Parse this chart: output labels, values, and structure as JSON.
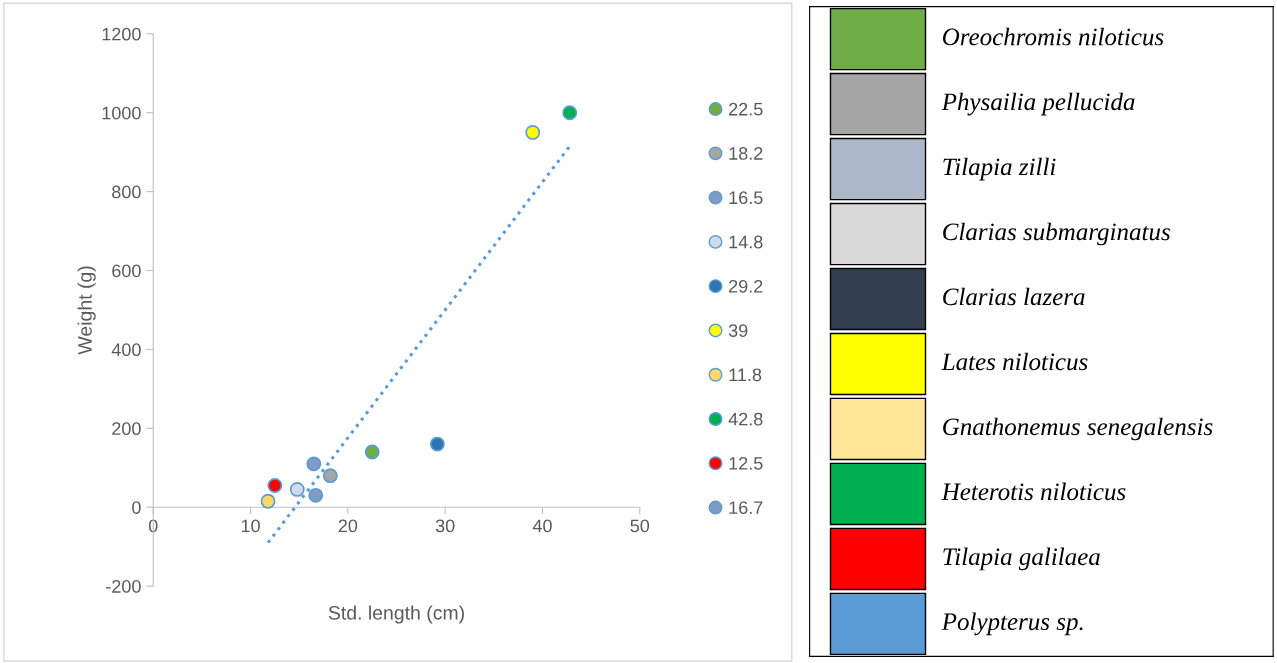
{
  "chart_data": [
    {
      "type": "scatter",
      "xlabel": "Std. length (cm)",
      "ylabel": "Weight (g)",
      "xlim": [
        0,
        50
      ],
      "xticks": [
        0,
        10,
        20,
        30,
        40,
        50
      ],
      "ylim": [
        -200,
        1200
      ],
      "yticks": [
        -200,
        0,
        200,
        400,
        600,
        800,
        1000,
        1200
      ],
      "grid": false,
      "legend": "right",
      "marker": "circle",
      "series": [
        {
          "name": "22.5",
          "color": "#70ad47",
          "x": [
            22.5
          ],
          "values": [
            140
          ]
        },
        {
          "name": "18.2",
          "color": "#a5a5a5",
          "x": [
            18.2
          ],
          "values": [
            80
          ]
        },
        {
          "name": "16.5",
          "color": "#7f9bc4",
          "x": [
            16.5
          ],
          "values": [
            110
          ]
        },
        {
          "name": "14.8",
          "color": "#d0dae8",
          "x": [
            14.8
          ],
          "values": [
            45
          ]
        },
        {
          "name": "29.2",
          "color": "#2e75b6",
          "x": [
            29.2
          ],
          "values": [
            160
          ]
        },
        {
          "name": "39",
          "color": "#ffff00",
          "x": [
            39
          ],
          "values": [
            950
          ]
        },
        {
          "name": "11.8",
          "color": "#ffd966",
          "x": [
            11.8
          ],
          "values": [
            15
          ]
        },
        {
          "name": "42.8",
          "color": "#00b050",
          "x": [
            42.8
          ],
          "values": [
            1000
          ]
        },
        {
          "name": "12.5",
          "color": "#ff0000",
          "x": [
            12.5
          ],
          "values": [
            55
          ]
        },
        {
          "name": "16.7",
          "color": "#7f9bc4",
          "x": [
            16.7
          ],
          "values": [
            30
          ]
        },
        {
          "type": "line",
          "color": "#5b9bd5",
          "line_style": "dotted",
          "marker": "none",
          "x": [
            11.8,
            42.8
          ],
          "values": [
            -90,
            915
          ]
        }
      ]
    },
    {
      "type": "other",
      "categories": [
        "Oreochromis niloticus",
        "Physailia pellucida",
        "Tilapia zilli",
        "Clarias submarginatus",
        "Clarias lazera",
        "Lates niloticus",
        "Gnathonemus senegalensis",
        "Heterotis niloticus",
        "Tilapia galilaea",
        "Polypterus sp."
      ],
      "colors": [
        "#70ad47",
        "#a5a5a5",
        "#adb9ca",
        "#d9d9d9",
        "#323f4f",
        "#ffff00",
        "#ffe699",
        "#00b050",
        "#ff0000",
        "#5b9bd5"
      ]
    }
  ]
}
